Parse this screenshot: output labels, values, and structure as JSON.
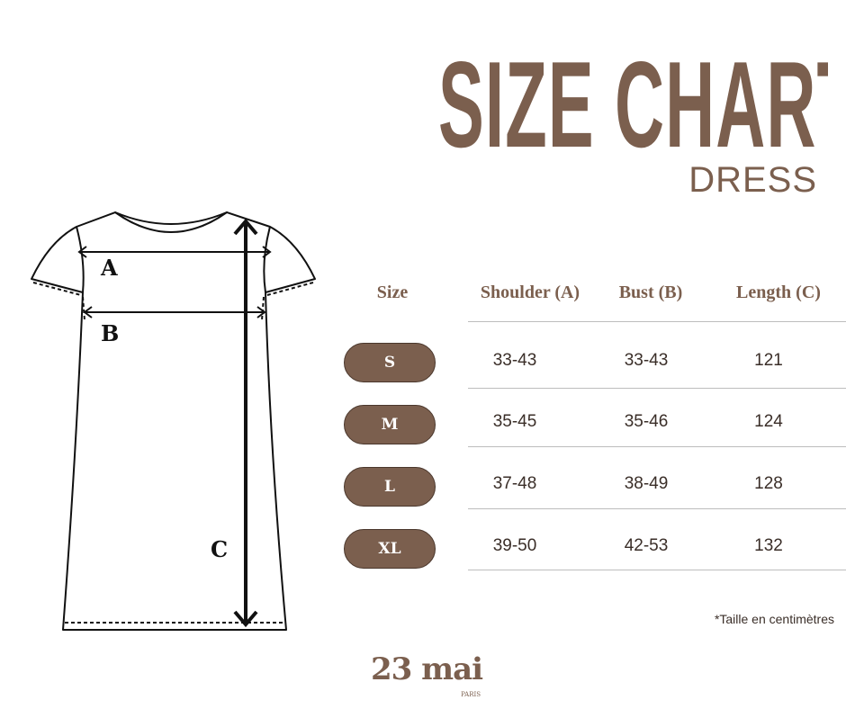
{
  "header": {
    "title": "SIZE CHART",
    "subtitle": "DRESS"
  },
  "diagram": {
    "labels": {
      "a": "A",
      "b": "B",
      "c": "C"
    }
  },
  "table": {
    "columns": [
      "Size",
      "Shoulder (A)",
      "Bust (B)",
      "Length (C)"
    ],
    "rows": [
      {
        "size": "S",
        "shoulder": "33-43",
        "bust": "33-43",
        "length": "121"
      },
      {
        "size": "M",
        "shoulder": "35-45",
        "bust": "35-46",
        "length": "124"
      },
      {
        "size": "L",
        "shoulder": "37-48",
        "bust": "38-49",
        "length": "128"
      },
      {
        "size": "XL",
        "shoulder": "39-50",
        "bust": "42-53",
        "length": "132"
      }
    ]
  },
  "note": "*Taille en centimètres",
  "logo": {
    "name": "23 mai",
    "city": "PARIS"
  },
  "colors": {
    "brand": "#7b5f4e",
    "text": "#3a2e28",
    "divider": "#bdbdbd"
  }
}
